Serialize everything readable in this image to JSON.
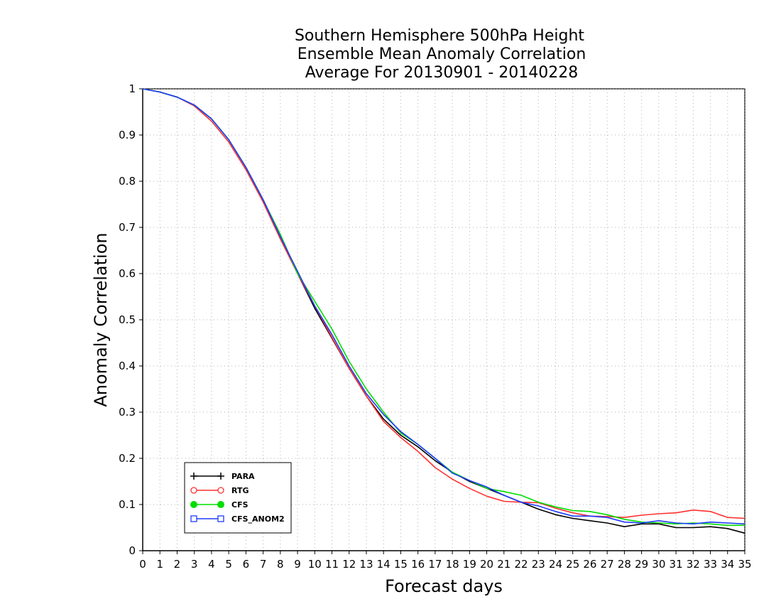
{
  "chart_data": {
    "type": "line",
    "title_lines": [
      "Southern Hemisphere 500hPa Height",
      "Ensemble Mean Anomaly Correlation",
      "Average For 20130901 - 20140228"
    ],
    "xlabel": "Forecast days",
    "ylabel": "Anomaly Correlation",
    "xlim": [
      0,
      35
    ],
    "ylim": [
      0,
      1
    ],
    "x_ticks": [
      0,
      1,
      2,
      3,
      4,
      5,
      6,
      7,
      8,
      9,
      10,
      11,
      12,
      13,
      14,
      15,
      16,
      17,
      18,
      19,
      20,
      21,
      22,
      23,
      24,
      25,
      26,
      27,
      28,
      29,
      30,
      31,
      32,
      33,
      34,
      35
    ],
    "y_ticks": [
      0,
      0.1,
      0.2,
      0.3,
      0.4,
      0.5,
      0.6,
      0.7,
      0.8,
      0.9,
      1
    ],
    "y_tick_labels": [
      "0",
      "0.1",
      "0.2",
      "0.3",
      "0.4",
      "0.5",
      "0.6",
      "0.7",
      "0.8",
      "0.9",
      "1"
    ],
    "grid": true,
    "legend_position": "bottom-left",
    "x": [
      0,
      1,
      2,
      3,
      4,
      5,
      6,
      7,
      8,
      9,
      10,
      11,
      12,
      13,
      14,
      15,
      16,
      17,
      18,
      19,
      20,
      21,
      22,
      23,
      24,
      25,
      26,
      27,
      28,
      29,
      30,
      31,
      32,
      33,
      34,
      35
    ],
    "series": [
      {
        "name": "PARA",
        "color": "#000000",
        "marker": "plus",
        "values": [
          1.0,
          0.993,
          0.982,
          0.965,
          0.935,
          0.89,
          0.83,
          0.76,
          0.68,
          0.6,
          0.525,
          0.46,
          0.395,
          0.335,
          0.285,
          0.25,
          0.225,
          0.195,
          0.17,
          0.15,
          0.135,
          0.12,
          0.105,
          0.09,
          0.078,
          0.07,
          0.065,
          0.06,
          0.052,
          0.058,
          0.058,
          0.05,
          0.05,
          0.052,
          0.048,
          0.038
        ]
      },
      {
        "name": "RTG",
        "color": "#ff3030",
        "marker": "circle-open",
        "values": [
          1.0,
          0.993,
          0.982,
          0.963,
          0.93,
          0.885,
          0.825,
          0.755,
          0.675,
          0.6,
          0.53,
          0.462,
          0.395,
          0.335,
          0.28,
          0.245,
          0.215,
          0.18,
          0.155,
          0.135,
          0.118,
          0.107,
          0.105,
          0.104,
          0.092,
          0.082,
          0.075,
          0.074,
          0.072,
          0.077,
          0.08,
          0.082,
          0.088,
          0.085,
          0.072,
          0.07
        ]
      },
      {
        "name": "CFS",
        "color": "#00dd00",
        "marker": "circle-filled",
        "values": [
          1.0,
          0.993,
          0.982,
          0.965,
          0.935,
          0.89,
          0.83,
          0.76,
          0.685,
          0.6,
          0.54,
          0.48,
          0.41,
          0.35,
          0.3,
          0.255,
          0.23,
          0.2,
          0.17,
          0.152,
          0.135,
          0.128,
          0.12,
          0.105,
          0.095,
          0.087,
          0.085,
          0.078,
          0.068,
          0.062,
          0.06,
          0.058,
          0.06,
          0.058,
          0.055,
          0.055
        ]
      },
      {
        "name": "CFS_ANOM2",
        "color": "#1e3cff",
        "marker": "square-open",
        "values": [
          1.0,
          0.993,
          0.982,
          0.965,
          0.935,
          0.89,
          0.83,
          0.76,
          0.68,
          0.605,
          0.53,
          0.468,
          0.4,
          0.34,
          0.295,
          0.258,
          0.23,
          0.2,
          0.168,
          0.152,
          0.138,
          0.12,
          0.105,
          0.097,
          0.085,
          0.075,
          0.075,
          0.072,
          0.062,
          0.06,
          0.065,
          0.06,
          0.058,
          0.062,
          0.06,
          0.058
        ]
      }
    ]
  }
}
